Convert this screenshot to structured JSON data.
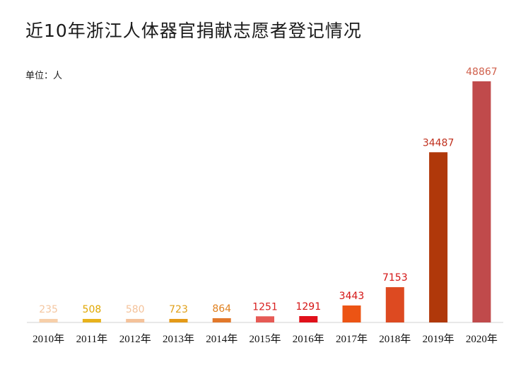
{
  "chart_data": {
    "type": "bar",
    "title": "近10年浙江人体器官捐献志愿者登记情况",
    "unit_label": "单位：人",
    "categories": [
      "2010年",
      "2011年",
      "2012年",
      "2013年",
      "2014年",
      "2015年",
      "2016年",
      "2017年",
      "2018年",
      "2019年",
      "2020年"
    ],
    "values": [
      235,
      508,
      580,
      723,
      864,
      1251,
      1291,
      3443,
      7153,
      34487,
      48867
    ],
    "data_labels": [
      "235",
      "508",
      "580",
      "723",
      "864",
      "1251",
      "1291",
      "3443",
      "7153",
      "34487",
      "48867"
    ],
    "bar_colors": [
      "#F7CFA9",
      "#E8B21B",
      "#F4C29A",
      "#E49A17",
      "#E2782A",
      "#E65A55",
      "#E0101A",
      "#EC5414",
      "#DD4A21",
      "#B0380A",
      "#C04A4B"
    ],
    "label_colors": [
      "#F4C6A0",
      "#E0A700",
      "#F4C29A",
      "#E0A019",
      "#E0801E",
      "#D81E1E",
      "#D41414",
      "#D41414",
      "#D41414",
      "#C0301E",
      "#D0624E"
    ],
    "ylim": [
      0,
      50000
    ],
    "xlabel": "",
    "ylabel": "",
    "grid": false,
    "legend": "none"
  }
}
